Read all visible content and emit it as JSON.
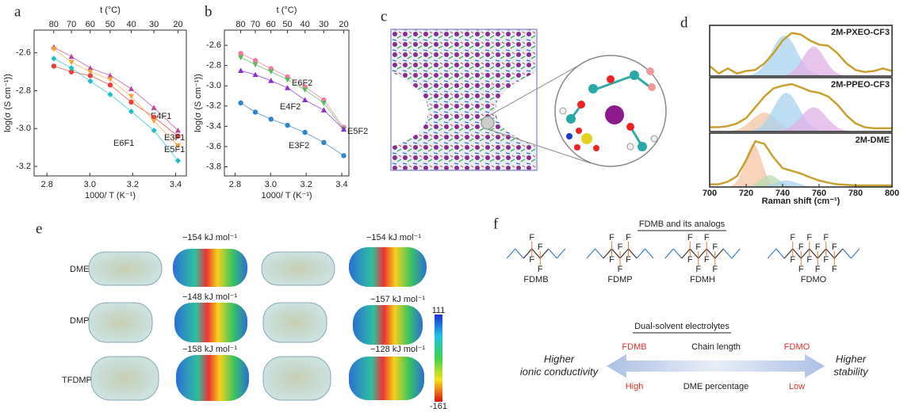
{
  "chart_data": [
    {
      "type": "line",
      "label": "a",
      "x2label": "t (°C)",
      "xlabel": "1000/ T (K⁻¹)",
      "ylabel": "log(σ (S cm⁻¹))",
      "x": [
        2.832,
        2.914,
        3.002,
        3.095,
        3.193,
        3.299,
        3.411
      ],
      "series": [
        {
          "name": "E4F1",
          "color": "#b8489c",
          "marker": "triangle-up",
          "values": [
            -2.57,
            -2.62,
            -2.68,
            -2.72,
            -2.79,
            -2.89,
            -3.01
          ]
        },
        {
          "name": "E3F1",
          "color": "#e8413c",
          "marker": "circle",
          "values": [
            -2.67,
            -2.7,
            -2.72,
            -2.77,
            -2.86,
            -2.94,
            -3.04
          ]
        },
        {
          "name": "E5F1",
          "color": "#f5a33a",
          "marker": "triangle-down",
          "values": [
            -2.58,
            -2.65,
            -2.7,
            -2.74,
            -2.83,
            -2.96,
            -3.09
          ]
        },
        {
          "name": "E6F1",
          "color": "#1fbfc8",
          "marker": "diamond",
          "values": [
            -2.63,
            -2.68,
            -2.75,
            -2.82,
            -2.91,
            -3.01,
            -3.17
          ]
        }
      ],
      "xlim": [
        2.74,
        3.45
      ],
      "xticks": [
        2.8,
        {
          "value": 3,
          "label": "3.0"
        },
        3.2,
        3.4
      ],
      "ylim": [
        -3.25,
        -2.48
      ],
      "yticks": [
        -2.6,
        -2.8,
        {
          "value": -3,
          "label": "-3.0"
        },
        -3.2
      ],
      "x2ticks": [
        80,
        70,
        60,
        50,
        40,
        30,
        20
      ]
    },
    {
      "type": "line",
      "label": "b",
      "x2label": "t (°C)",
      "xlabel": "1000/ T (K⁻¹)",
      "ylabel": "log(σ (S cm⁻¹))",
      "x": [
        2.832,
        2.914,
        3.002,
        3.095,
        3.193,
        3.299,
        3.411
      ],
      "series": [
        {
          "name": "E6F2",
          "color": "#f07aa0",
          "marker": "circle",
          "values": [
            -2.68,
            -2.75,
            -2.83,
            -2.91,
            -3.01,
            -3.14,
            -3.41
          ]
        },
        {
          "name": "E5F2",
          "color": "#5cb85c",
          "marker": "triangle-down",
          "values": [
            -2.72,
            -2.79,
            -2.86,
            -2.94,
            -3.04,
            -3.17,
            -3.43
          ]
        },
        {
          "name": "E4F2",
          "color": "#8b2fc9",
          "marker": "triangle-up",
          "values": [
            -2.85,
            -2.89,
            -2.95,
            -3.02,
            -3.14,
            -3.24,
            -3.43
          ]
        },
        {
          "name": "E3F2",
          "color": "#2e86c8",
          "marker": "circle",
          "values": [
            -3.17,
            -3.26,
            -3.33,
            -3.39,
            -3.46,
            -3.56,
            -3.69
          ]
        }
      ],
      "xlim": [
        2.74,
        3.44
      ],
      "xticks": [
        2.8,
        {
          "value": 3,
          "label": "3.0"
        },
        3.2,
        3.4
      ],
      "ylim": [
        -3.89,
        -2.45
      ],
      "yticks": [
        -2.6,
        -2.8,
        {
          "value": -3,
          "label": "-3.0"
        },
        -3.2,
        -3.4,
        -3.6,
        -3.8
      ],
      "x2ticks": [
        80,
        70,
        60,
        50,
        40,
        30,
        20
      ]
    },
    {
      "type": "spectrum",
      "label": "d",
      "xlabel": "Raman shift (cm⁻¹)",
      "xlim": [
        700,
        800
      ],
      "xticks": [
        700,
        720,
        740,
        760,
        780,
        800
      ],
      "ylim": [
        0,
        1
      ],
      "color": "#c8a030",
      "x": [
        700,
        705,
        710,
        715,
        720,
        725,
        730,
        735,
        740,
        745,
        750,
        755,
        760,
        765,
        770,
        775,
        780,
        785,
        790,
        795,
        800
      ],
      "subplots": [
        {
          "title": "2M-PXEO-CF3",
          "values": [
            0.2,
            0.05,
            0.15,
            0.05,
            0.1,
            0.12,
            0.25,
            0.45,
            0.7,
            0.85,
            0.82,
            0.7,
            0.62,
            0.6,
            0.45,
            0.25,
            0.12,
            0.08,
            0.1,
            0.15,
            0.1
          ],
          "peaks": [
            {
              "center": 741,
              "height": 0.8,
              "width": 7,
              "color": "#a8d4ef"
            },
            {
              "center": 757,
              "height": 0.58,
              "width": 6,
              "color": "#e2b0e6"
            }
          ]
        },
        {
          "title": "2M-PPEO-CF3",
          "values": [
            0.08,
            0.08,
            0.1,
            0.15,
            0.25,
            0.45,
            0.65,
            0.8,
            0.85,
            0.88,
            0.82,
            0.75,
            0.72,
            0.65,
            0.5,
            0.3,
            0.15,
            0.08,
            0.06,
            0.06,
            0.06
          ],
          "peaks": [
            {
              "center": 730,
              "height": 0.35,
              "width": 7,
              "color": "#f6c4a4"
            },
            {
              "center": 742,
              "height": 0.72,
              "width": 7,
              "color": "#a8d4ef"
            },
            {
              "center": 757,
              "height": 0.45,
              "width": 7,
              "color": "#e2b0e6"
            }
          ]
        },
        {
          "title": "2M-DME",
          "values": [
            0.05,
            0.05,
            0.1,
            0.2,
            0.5,
            0.85,
            0.8,
            0.55,
            0.35,
            0.3,
            0.25,
            0.18,
            0.12,
            0.08,
            0.05,
            0.04,
            0.03,
            0.03,
            0.03,
            0.03,
            0.03
          ],
          "peaks": [
            {
              "center": 724,
              "height": 0.8,
              "width": 4.5,
              "color": "#f6c4a4"
            },
            {
              "center": 733,
              "height": 0.22,
              "width": 5,
              "color": "#b8dcb0"
            },
            {
              "center": 742,
              "height": 0.12,
              "width": 6,
              "color": "#a8d4ef"
            }
          ]
        }
      ]
    }
  ],
  "panel_c": {
    "label": "c"
  },
  "panel_e": {
    "label": "e",
    "rows": [
      "DME",
      "DMP",
      "TFDMP"
    ],
    "annotations": [
      "−154 kJ mol⁻¹",
      "−154 kJ mol⁻¹",
      "−148 kJ mol⁻¹",
      "−157 kJ mol⁻¹",
      "−158 kJ mol⁻¹",
      "−128 kJ mol⁻¹"
    ],
    "colorbar": [
      "111",
      "-161"
    ]
  },
  "panel_f": {
    "label": "f",
    "title": "FDMB and its analogs",
    "atom": "F",
    "molecules": [
      "FDMB",
      "FDMP",
      "FDMH",
      "FDMO"
    ],
    "subtitle": "Dual-solvent electrolytes",
    "left": [
      "Higher",
      "ionic conductivity"
    ],
    "right": [
      "Higher",
      "stability"
    ],
    "top": [
      "FDMB",
      "Chain length",
      "FDMO"
    ],
    "bottom": [
      "High",
      "DME percentage",
      "Low"
    ]
  }
}
